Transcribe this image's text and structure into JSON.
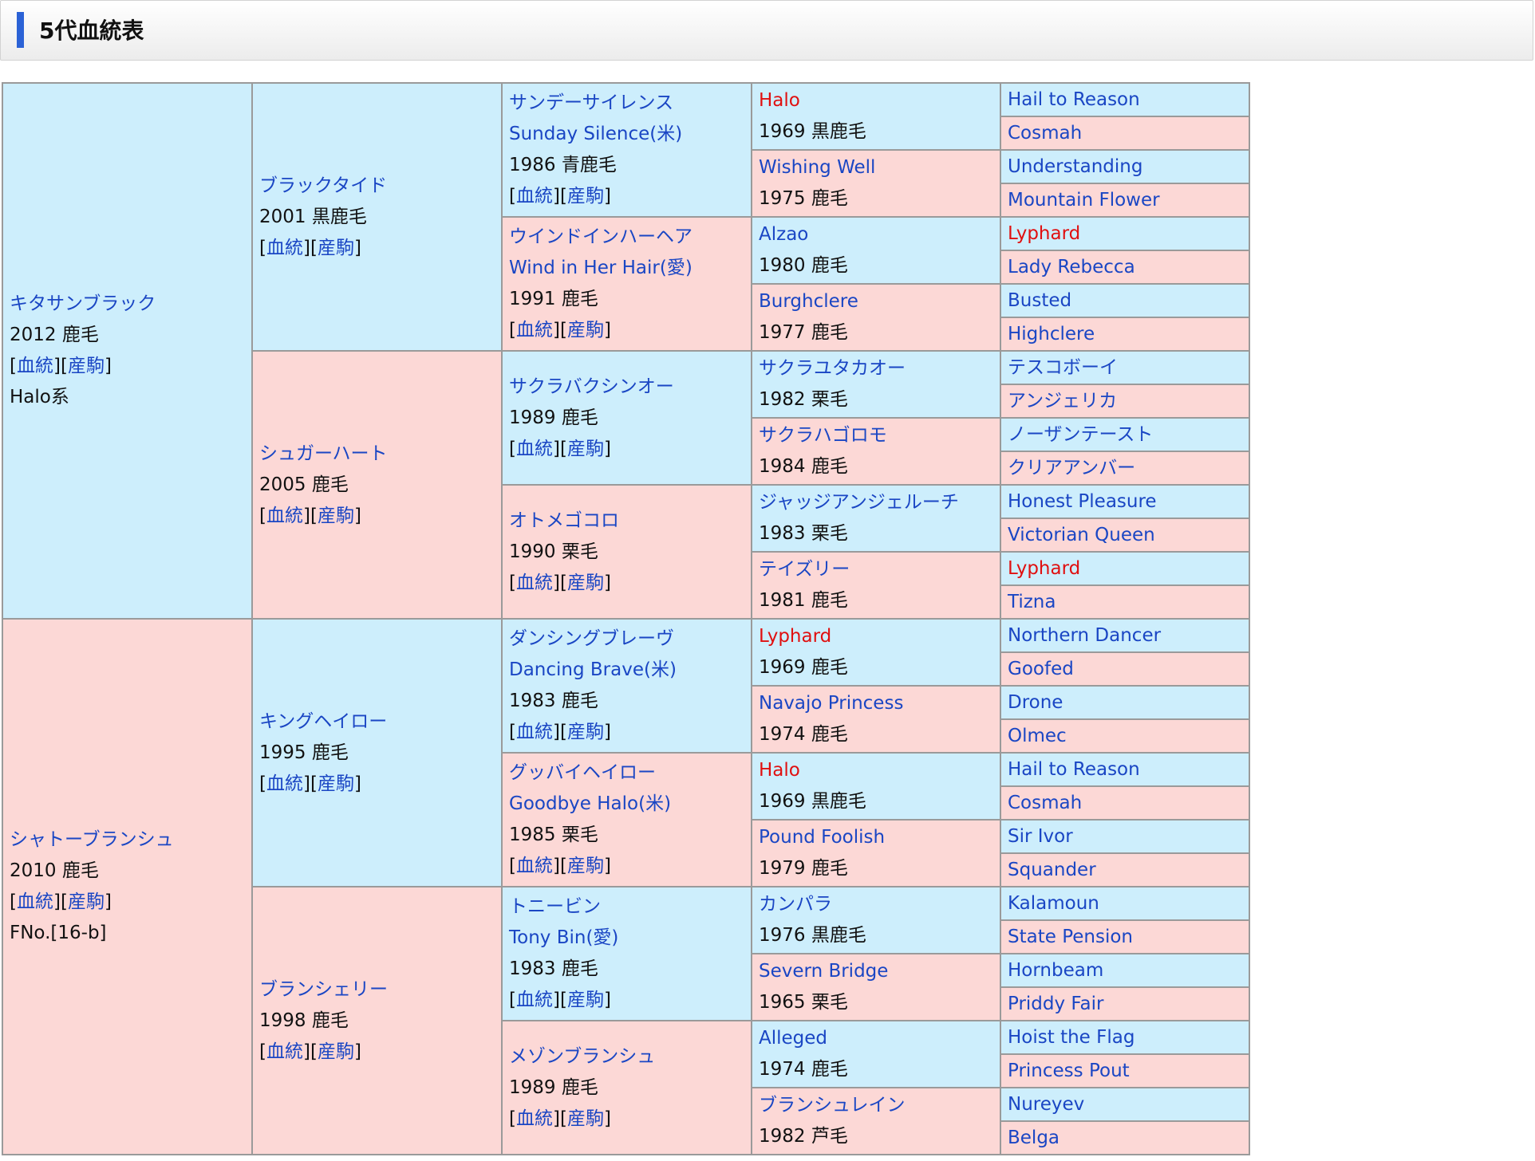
{
  "header": {
    "title": "5代血統表"
  },
  "links": {
    "blood": "血統",
    "progeny": "産駒"
  },
  "gen1": [
    {
      "name": "キタサンブラック",
      "info": "2012 鹿毛",
      "extra": "Halo系"
    },
    {
      "name": "シャトーブランシュ",
      "info": "2010 鹿毛",
      "extra": "FNo.[16-b]"
    }
  ],
  "gen2": [
    {
      "name": "ブラックタイド",
      "info": "2001 黒鹿毛"
    },
    {
      "name": "シュガーハート",
      "info": "2005 鹿毛"
    },
    {
      "name": "キングヘイロー",
      "info": "1995 鹿毛"
    },
    {
      "name": "ブランシェリー",
      "info": "1998 鹿毛"
    }
  ],
  "gen3": [
    {
      "name": "サンデーサイレンス",
      "sub": "Sunday Silence(米)",
      "info": "1986 青鹿毛"
    },
    {
      "name": "ウインドインハーヘア",
      "sub": "Wind in Her Hair(愛)",
      "info": "1991 鹿毛"
    },
    {
      "name": "サクラバクシンオー",
      "sub": "",
      "info": "1989 鹿毛"
    },
    {
      "name": "オトメゴコロ",
      "sub": "",
      "info": "1990 栗毛"
    },
    {
      "name": "ダンシングブレーヴ",
      "sub": "Dancing Brave(米)",
      "info": "1983 鹿毛"
    },
    {
      "name": "グッバイヘイロー",
      "sub": "Goodbye Halo(米)",
      "info": "1985 栗毛"
    },
    {
      "name": "トニービン",
      "sub": "Tony Bin(愛)",
      "info": "1983 鹿毛"
    },
    {
      "name": "メゾンブランシュ",
      "sub": "",
      "info": "1989 鹿毛"
    }
  ],
  "gen4": [
    {
      "name": "Halo",
      "info": "1969 黒鹿毛"
    },
    {
      "name": "Wishing Well",
      "info": "1975 鹿毛"
    },
    {
      "name": "Alzao",
      "info": "1980 鹿毛"
    },
    {
      "name": "Burghclere",
      "info": "1977 鹿毛"
    },
    {
      "name": "サクラユタカオー",
      "info": "1982 栗毛"
    },
    {
      "name": "サクラハゴロモ",
      "info": "1984 鹿毛"
    },
    {
      "name": "ジャッジアンジェルーチ",
      "info": "1983 栗毛"
    },
    {
      "name": "テイズリー",
      "info": "1981 鹿毛"
    },
    {
      "name": "Lyphard",
      "info": "1969 鹿毛"
    },
    {
      "name": "Navajo Princess",
      "info": "1974 鹿毛"
    },
    {
      "name": "Halo",
      "info": "1969 黒鹿毛"
    },
    {
      "name": "Pound Foolish",
      "info": "1979 鹿毛"
    },
    {
      "name": "カンパラ",
      "info": "1976 黒鹿毛"
    },
    {
      "name": "Severn Bridge",
      "info": "1965 栗毛"
    },
    {
      "name": "Alleged",
      "info": "1974 鹿毛"
    },
    {
      "name": "ブランシュレイン",
      "info": "1982 芦毛"
    }
  ],
  "gen5": [
    "Hail to Reason",
    "Cosmah",
    "Understanding",
    "Mountain Flower",
    "Lyphard",
    "Lady Rebecca",
    "Busted",
    "Highclere",
    "テスコボーイ",
    "アンジェリカ",
    "ノーザンテースト",
    "クリアアンバー",
    "Honest Pleasure",
    "Victorian Queen",
    "Lyphard",
    "Tizna",
    "Northern Dancer",
    "Goofed",
    "Drone",
    "Olmec",
    "Hail to Reason",
    "Cosmah",
    "Sir Ivor",
    "Squander",
    "Kalamoun",
    "State Pension",
    "Hornbeam",
    "Priddy Fair",
    "Hoist the Flag",
    "Princess Pout",
    "Nureyev",
    "Belga"
  ],
  "colors": {
    "male_bg": "#cdeefc",
    "female_bg": "#fcd8d6",
    "link": "#1a46c4",
    "highlight": "#e01010",
    "accent_bar": "#2b62d6"
  }
}
